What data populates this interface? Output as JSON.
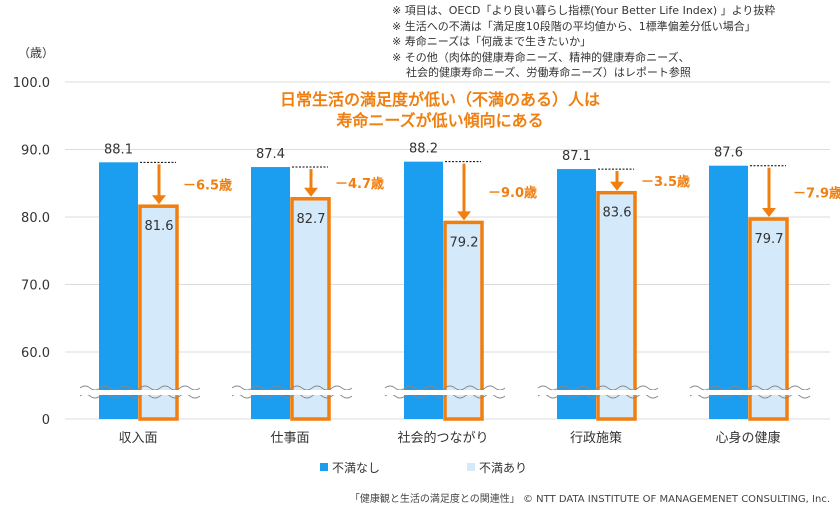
{
  "notes": [
    "※ 項目は、OECD「より良い暮らし指標(Your Better Life Index) 」より抜粋",
    "※ 生活への不満は「満足度10段階の平均値から、1標準偏差分低い場合」",
    "※ 寿命ニーズは「何歳まで生きたいか」",
    "※ その他（肉体的健康寿命ニーズ、精神的健康寿命ニーズ、",
    "    社会的健康寿命ニーズ、労働寿命ニーズ）はレポート参照"
  ],
  "footer": "「健康観と生活の満足度との関連性」 © NTT DATA INSTITUTE OF MANAGEMENET CONSULTING, Inc.",
  "colors": {
    "no_dissatisfaction": "#1b9df0",
    "dissatisfied": "#d4eafb",
    "highlight": "#f07f0f"
  },
  "chart_data": {
    "type": "bar",
    "title": "日常生活の満足度が低い（不満のある）人は\n寿命ニーズが低い傾向にある",
    "ylabel": "（歳）",
    "ylim": [
      0,
      100
    ],
    "axis_break": [
      0,
      60
    ],
    "yticks": [
      "100.0",
      "90.0",
      "80.0",
      "70.0",
      "60.0",
      "0"
    ],
    "ytick_values": [
      100,
      90,
      80,
      70,
      60,
      0
    ],
    "grid": true,
    "legend_position": "bottom",
    "categories": [
      "収入面",
      "仕事面",
      "社会的つながり",
      "行政施策",
      "心身の健康"
    ],
    "series": [
      {
        "name": "不満なし",
        "values": [
          88.1,
          87.4,
          88.2,
          87.1,
          87.6
        ]
      },
      {
        "name": "不満あり",
        "values": [
          81.6,
          82.7,
          79.2,
          83.6,
          79.7
        ]
      }
    ],
    "differences": [
      "－6.5歳",
      "－4.7歳",
      "－9.0歳",
      "－3.5歳",
      "－7.9歳"
    ]
  }
}
